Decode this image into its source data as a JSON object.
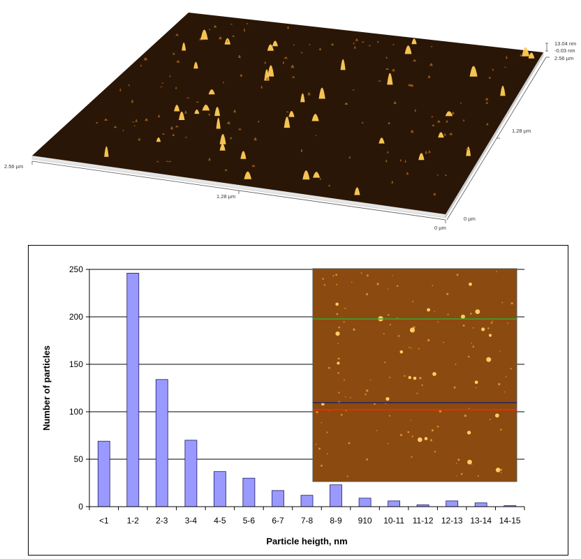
{
  "afm_3d": {
    "z_top_label": "13.04 nm",
    "z_bottom_label": "-0.03 nm",
    "y_top_label": "2.56 µm",
    "y_mid_label": "1.28 µm",
    "y_zero_label": "0 µm",
    "x_left_label": "2.56 µm",
    "x_mid_label": "1.28 µm",
    "x_zero_label": "0 µm",
    "colors": {
      "surface": "#2a1606",
      "peak": "#ffcc55",
      "side": "#dddddd"
    }
  },
  "chart_data": {
    "type": "bar",
    "categories": [
      "<1",
      "1-2",
      "2-3",
      "3-4",
      "4-5",
      "5-6",
      "6-7",
      "7-8",
      "8-9",
      "910",
      "10-11",
      "11-12",
      "12-13",
      "13-14",
      "14-15"
    ],
    "values": [
      69,
      246,
      134,
      70,
      37,
      30,
      17,
      12,
      23,
      9,
      6,
      2,
      6,
      4,
      1
    ],
    "xlabel": "Particle heigth, nm",
    "ylabel": "Number of particles",
    "ylim": [
      0,
      250
    ],
    "yticks": [
      "0",
      "50",
      "100",
      "150",
      "200",
      "250"
    ],
    "grid": true,
    "colors": {
      "bar": "#9999ff",
      "bar_edge": "#1a1a66"
    }
  },
  "inset_image": {
    "colors": {
      "background": "#8b4a0f",
      "particle": "#ffcc66",
      "line_green": "#33aa33",
      "line_dark": "#222266",
      "line_red": "#ff2200"
    }
  }
}
